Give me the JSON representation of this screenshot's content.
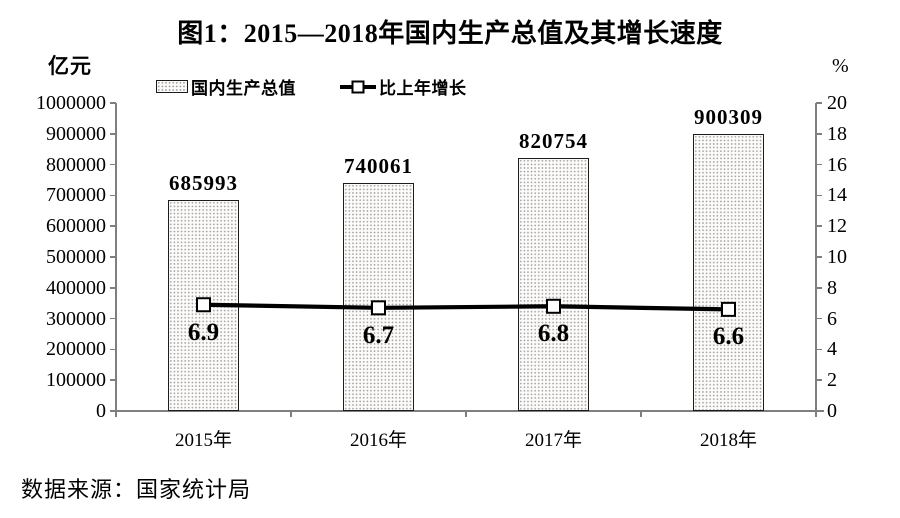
{
  "title": "图1：2015—2018年国内生产总值及其增长速度",
  "source_note": "数据来源：国家统计局",
  "left_axis": {
    "unit": "亿元",
    "min": 0,
    "max": 1000000,
    "tick_labels": [
      "0",
      "100000",
      "200000",
      "300000",
      "400000",
      "500000",
      "600000",
      "700000",
      "800000",
      "900000",
      "1000000"
    ]
  },
  "right_axis": {
    "unit": "%",
    "min": 0,
    "max": 20,
    "tick_labels": [
      "0",
      "2",
      "4",
      "6",
      "8",
      "10",
      "12",
      "14",
      "16",
      "18",
      "20"
    ]
  },
  "legend": {
    "items": [
      {
        "label": "国内生产总值",
        "swatch": "patterned-bar"
      },
      {
        "label": "比上年增长",
        "swatch": "line-with-square-marker"
      }
    ]
  },
  "chart_data": {
    "type": "bar+line",
    "title": "图1：2015—2018年国内生产总值及其增长速度",
    "categories": [
      "2015年",
      "2016年",
      "2017年",
      "2018年"
    ],
    "series": [
      {
        "name": "国内生产总值",
        "type": "bar",
        "axis": "left",
        "unit": "亿元",
        "values": [
          685993,
          740061,
          820754,
          900309
        ],
        "labels": [
          "685993",
          "740061",
          "820754",
          "900309"
        ]
      },
      {
        "name": "比上年增长",
        "type": "line",
        "axis": "right",
        "unit": "%",
        "values": [
          6.9,
          6.7,
          6.8,
          6.6
        ],
        "labels": [
          "6.9",
          "6.7",
          "6.8",
          "6.6"
        ]
      }
    ],
    "ylabel_left": "亿元",
    "ylabel_right": "%",
    "ylim_left": [
      0,
      1000000
    ],
    "ylim_right": [
      0,
      20
    ],
    "grid": false,
    "legend_position": "top"
  },
  "colors": {
    "background": "#ffffff",
    "text": "#000000",
    "axis_line": "#7f7f7f",
    "bar_fill": "#fcfbf9",
    "bar_dots": "#a8a8a8",
    "bar_border": "#1c1c1c",
    "line": "#000000",
    "marker_fill": "#ffffff",
    "marker_border": "#000000"
  }
}
